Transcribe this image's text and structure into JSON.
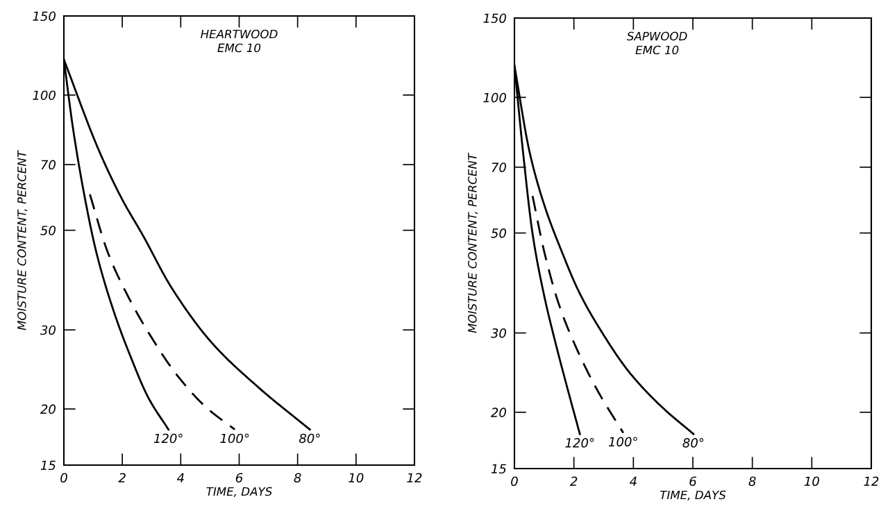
{
  "chart_data": [
    {
      "type": "line",
      "title": "HEARTWOOD\nEMC 10",
      "xlabel": "TIME, DAYS",
      "ylabel": "MOISTURE CONTENT, PERCENT",
      "log": "y",
      "xlim": [
        0,
        12
      ],
      "xticks": [
        0,
        2,
        4,
        6,
        8,
        10,
        12
      ],
      "ylim": [
        15,
        150
      ],
      "yticks": [
        15,
        20,
        30,
        50,
        70,
        100,
        150
      ],
      "series": [
        {
          "name": "120°",
          "color": "#000000",
          "line_style": "solid",
          "x": [
            0,
            0.32,
            0.71,
            1.11,
            1.7,
            2.29,
            2.89,
            3.58
          ],
          "values": [
            120,
            83.7,
            59.4,
            44.7,
            33.1,
            26.1,
            21.2,
            18.0
          ]
        },
        {
          "name": "100°",
          "color": "#000000",
          "line_style": "dashed",
          "x": [
            0.89,
            1.5,
            2.19,
            2.98,
            3.87,
            4.86,
            5.85
          ],
          "values": [
            60.1,
            44.7,
            35.7,
            29.0,
            23.8,
            20.2,
            18.0
          ]
        },
        {
          "name": "80°",
          "color": "#000000",
          "line_style": "solid",
          "x": [
            0,
            1.21,
            2.0,
            2.69,
            3.68,
            5.06,
            6.64,
            8.42
          ],
          "values": [
            120,
            75,
            58.5,
            48.9,
            37.3,
            28.1,
            22.4,
            18.0
          ]
        }
      ]
    },
    {
      "type": "line",
      "title": "SAPWOOD\nEMC 10",
      "xlabel": "TIME, DAYS",
      "ylabel": "MOISTURE CONTENT, PERCENT",
      "log": "y",
      "xlim": [
        0,
        12
      ],
      "xticks": [
        0,
        2,
        4,
        6,
        8,
        10,
        12
      ],
      "ylim": [
        15,
        150
      ],
      "yticks": [
        15,
        20,
        30,
        50,
        70,
        100,
        150
      ],
      "series": [
        {
          "name": "120°",
          "color": "#000000",
          "line_style": "solid",
          "x": [
            0,
            0.31,
            0.61,
            1.0,
            1.4,
            1.79,
            2.2
          ],
          "values": [
            117.6,
            73.4,
            49.8,
            36.3,
            28.2,
            22.5,
            17.9
          ]
        },
        {
          "name": "100°",
          "color": "#000000",
          "line_style": "dashed",
          "x": [
            0.61,
            1.0,
            1.49,
            2.08,
            2.77,
            3.66
          ],
          "values": [
            60.4,
            45.5,
            34.8,
            27.8,
            22.5,
            18.0
          ]
        },
        {
          "name": "80°",
          "color": "#000000",
          "line_style": "solid",
          "x": [
            0,
            0.51,
            1.0,
            1.59,
            2.18,
            2.97,
            3.85,
            4.94,
            6.02
          ],
          "values": [
            117.6,
            75.6,
            57.8,
            45.5,
            36.9,
            29.9,
            24.6,
            20.6,
            17.9
          ]
        }
      ]
    }
  ]
}
